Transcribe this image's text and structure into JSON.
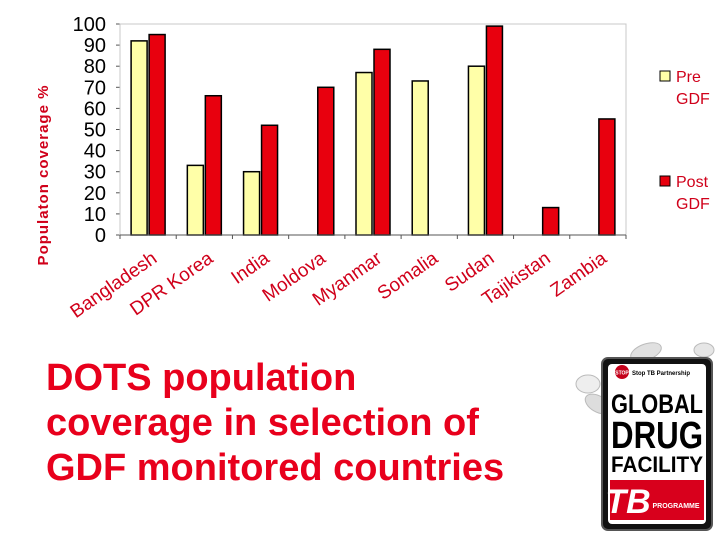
{
  "chart_data": {
    "type": "bar",
    "categories": [
      "Bangladesh",
      "DPR Korea",
      "India",
      "Moldova",
      "Myanmar",
      "Somalia",
      "Sudan",
      "Tajikistan",
      "Zambia"
    ],
    "series": [
      {
        "name": "Pre GDF",
        "values": [
          92,
          33,
          30,
          null,
          77,
          73,
          80,
          null,
          null
        ],
        "color": "#ffffa8"
      },
      {
        "name": "Post GDF",
        "values": [
          95,
          66,
          52,
          70,
          88,
          null,
          99,
          13,
          55
        ],
        "color": "#e8000e"
      }
    ],
    "y_ticks": [
      0,
      10,
      20,
      30,
      40,
      50,
      60,
      70,
      80,
      90,
      100
    ],
    "ylim": [
      0,
      100
    ],
    "ylabel": "Populaton coverage %",
    "xlabel": "",
    "title": "",
    "legend": {
      "placement": "right",
      "entries": [
        [
          "Pre",
          "GDF"
        ],
        [
          "Post",
          "GDF"
        ]
      ]
    },
    "grid": false
  },
  "slide": {
    "title_lines": [
      "DOTS population",
      "coverage in selection of",
      "GDF monitored countries"
    ]
  },
  "logo": {
    "partner_text": "Stop TB Partnership",
    "stop_text": "STOP",
    "tb_text": "TB",
    "line1": "GLOBAL",
    "line2": "DRUG",
    "line3": "FACILITY",
    "programme_text": "PROGRAMME"
  }
}
